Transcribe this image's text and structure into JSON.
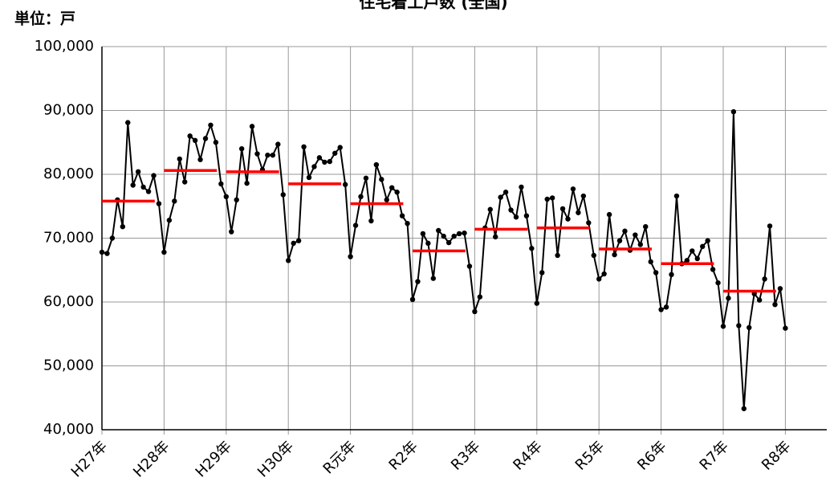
{
  "chart_data": {
    "type": "line",
    "title": "住宅着工戸数 (全国)",
    "unit_label": "単位：戸",
    "categories": [
      "H27年",
      null,
      null,
      null,
      null,
      null,
      null,
      null,
      null,
      null,
      null,
      null,
      "H28年",
      null,
      null,
      null,
      null,
      null,
      null,
      null,
      null,
      null,
      null,
      null,
      "H29年",
      null,
      null,
      null,
      null,
      null,
      null,
      null,
      null,
      null,
      null,
      null,
      "H30年",
      null,
      null,
      null,
      null,
      null,
      null,
      null,
      null,
      null,
      null,
      null,
      "R元年",
      null,
      null,
      null,
      null,
      null,
      null,
      null,
      null,
      null,
      null,
      null,
      "R2年",
      null,
      null,
      null,
      null,
      null,
      null,
      null,
      null,
      null,
      null,
      null,
      "R3年",
      null,
      null,
      null,
      null,
      null,
      null,
      null,
      null,
      null,
      null,
      null,
      "R4年",
      null,
      null,
      null,
      null,
      null,
      null,
      null,
      null,
      null,
      null,
      null,
      "R5年",
      null,
      null,
      null,
      null,
      null,
      null,
      null,
      null,
      null,
      null,
      null,
      "R6年",
      null,
      null,
      null,
      null,
      null,
      null,
      null,
      null,
      null,
      null,
      null,
      "R7年",
      null,
      null,
      null,
      null,
      null,
      null,
      null,
      null,
      null,
      null,
      null,
      "R8年"
    ],
    "color": "#000000",
    "values": [
      67800,
      67600,
      70000,
      76000,
      71800,
      88100,
      78300,
      80400,
      78000,
      77300,
      79800,
      75400,
      67800,
      72800,
      75800,
      82400,
      78800,
      86000,
      85300,
      82300,
      85600,
      87700,
      85000,
      78500,
      76500,
      71000,
      76000,
      84000,
      78600,
      87500,
      83200,
      80700,
      83000,
      83000,
      84700,
      76800,
      66500,
      69200,
      69600,
      84300,
      79500,
      81200,
      82600,
      81900,
      82000,
      83300,
      84200,
      78400,
      67100,
      72000,
      76500,
      79400,
      72700,
      81500,
      79200,
      76000,
      77900,
      77200,
      73500,
      72300,
      60400,
      63200,
      70700,
      69200,
      63700,
      71200,
      70300,
      69300,
      70300,
      70700,
      70800,
      65600,
      58500,
      60800,
      71600,
      74500,
      70200,
      76400,
      77200,
      74400,
      73300,
      78000,
      73500,
      68400,
      59800,
      64600,
      76100,
      76300,
      67300,
      74600,
      73000,
      77700,
      74000,
      76600,
      72400,
      67300,
      63600,
      64400,
      73700,
      67400,
      69600,
      71100,
      68100,
      70500,
      69000,
      71800,
      66300,
      64600,
      58800,
      59200,
      64300,
      76600,
      66000,
      66500,
      68000,
      66800,
      68700,
      69600,
      65100,
      63000,
      56200,
      60600,
      89800,
      56300,
      43300,
      56000,
      61300,
      60300,
      63600,
      71900,
      59600,
      62100,
      55900
    ],
    "averages": {
      "color": "#ff0000",
      "values": [
        75800,
        80600,
        80400,
        78500,
        75400,
        68000,
        71400,
        71600,
        68300,
        66000,
        61700
      ]
    },
    "ylim": [
      40000,
      100000
    ],
    "yticks": [
      {
        "value": 40000,
        "label": "40,000"
      },
      {
        "value": 50000,
        "label": "50,000"
      },
      {
        "value": 60000,
        "label": "60,000"
      },
      {
        "value": 70000,
        "label": "70,000"
      },
      {
        "value": 80000,
        "label": "80,000"
      },
      {
        "value": 90000,
        "label": "90,000"
      },
      {
        "value": 100000,
        "label": "100,000"
      }
    ],
    "grid": true
  }
}
